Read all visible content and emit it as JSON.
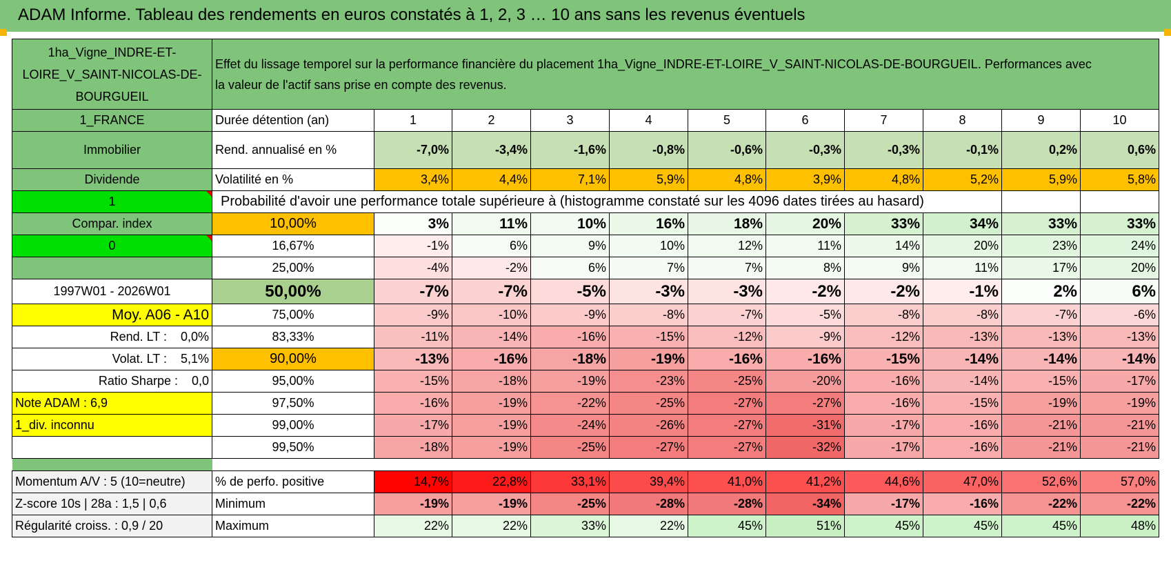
{
  "header": {
    "title": "ADAM Informe. Tableau des rendements en euros constatés à 1, 2, 3 … 10 ans sans les revenus éventuels"
  },
  "sidebar": {
    "asset_name": "1ha_Vigne_INDRE-ET-LOIRE_V_SAINT-NICOLAS-DE-BOURGUEIL",
    "country": "1_FRANCE",
    "category": "Immobilier",
    "type": "Dividende",
    "value1": "1",
    "compar_label": "Compar. index",
    "value0": "0",
    "period": "1997W01 - 2026W01",
    "moy": "Moy. A06 - A10",
    "rend_lt": "Rend. LT :    0,0%",
    "volat_lt": "Volat. LT :    5,1%",
    "sharpe": "Ratio Sharpe :    0,0",
    "note": "Note ADAM : 6,9",
    "div": "1_div. inconnu",
    "momentum": "Momentum A/V : 5 (10=neutre)",
    "zscore": "Z-score 10s | 28a : 1,5 | 0,6",
    "regularite": "Régularité croiss. : 0,9 / 20"
  },
  "table": {
    "description": "Effet du lissage temporel sur la performance financière du placement 1ha_Vigne_INDRE-ET-LOIRE_V_SAINT-NICOLAS-DE-BOURGUEIL. Performances avec la valeur de l'actif sans prise en compte des revenus.",
    "duration_label": "Durée détention (an)",
    "years": [
      "1",
      "2",
      "3",
      "4",
      "5",
      "6",
      "7",
      "8",
      "9",
      "10"
    ],
    "rend_label": "Rend. annualisé en %",
    "rend": [
      "-7,0%",
      "-3,4%",
      "-1,6%",
      "-0,8%",
      "-0,6%",
      "-0,3%",
      "-0,3%",
      "-0,1%",
      "0,2%",
      "0,6%"
    ],
    "vol_label": "Volatilité en %",
    "vol": [
      "3,4%",
      "4,4%",
      "7,1%",
      "5,9%",
      "4,8%",
      "3,9%",
      "4,8%",
      "5,2%",
      "5,9%",
      "5,8%"
    ],
    "prob_header": "Probabilité d'avoir une performance totale supérieure à (histogramme constaté sur les 4096 dates tirées au hasard)",
    "percentiles": [
      {
        "p": "10,00%",
        "vals": [
          "3%",
          "11%",
          "10%",
          "16%",
          "18%",
          "20%",
          "33%",
          "34%",
          "33%",
          "33%"
        ]
      },
      {
        "p": "16,67%",
        "vals": [
          "-1%",
          "6%",
          "9%",
          "10%",
          "12%",
          "11%",
          "14%",
          "20%",
          "23%",
          "24%"
        ]
      },
      {
        "p": "25,00%",
        "vals": [
          "-4%",
          "-2%",
          "6%",
          "7%",
          "7%",
          "8%",
          "9%",
          "11%",
          "17%",
          "20%"
        ]
      },
      {
        "p": "50,00%",
        "vals": [
          "-7%",
          "-7%",
          "-5%",
          "-3%",
          "-3%",
          "-2%",
          "-2%",
          "-1%",
          "2%",
          "6%"
        ]
      },
      {
        "p": "75,00%",
        "vals": [
          "-9%",
          "-10%",
          "-9%",
          "-8%",
          "-7%",
          "-5%",
          "-8%",
          "-8%",
          "-7%",
          "-6%"
        ]
      },
      {
        "p": "83,33%",
        "vals": [
          "-11%",
          "-14%",
          "-16%",
          "-15%",
          "-12%",
          "-9%",
          "-12%",
          "-13%",
          "-13%",
          "-13%"
        ]
      },
      {
        "p": "90,00%",
        "vals": [
          "-13%",
          "-16%",
          "-18%",
          "-19%",
          "-16%",
          "-16%",
          "-15%",
          "-14%",
          "-14%",
          "-14%"
        ]
      },
      {
        "p": "95,00%",
        "vals": [
          "-15%",
          "-18%",
          "-19%",
          "-23%",
          "-25%",
          "-20%",
          "-16%",
          "-14%",
          "-15%",
          "-17%"
        ]
      },
      {
        "p": "97,50%",
        "vals": [
          "-16%",
          "-19%",
          "-22%",
          "-25%",
          "-27%",
          "-27%",
          "-16%",
          "-15%",
          "-19%",
          "-19%"
        ]
      },
      {
        "p": "99,00%",
        "vals": [
          "-17%",
          "-19%",
          "-24%",
          "-26%",
          "-27%",
          "-31%",
          "-17%",
          "-16%",
          "-21%",
          "-21%"
        ]
      },
      {
        "p": "99,50%",
        "vals": [
          "-18%",
          "-19%",
          "-25%",
          "-27%",
          "-27%",
          "-32%",
          "-17%",
          "-16%",
          "-21%",
          "-21%"
        ]
      }
    ],
    "pos_label": "% de perfo. positive",
    "pos": [
      "14,7%",
      "22,8%",
      "33,1%",
      "39,4%",
      "41,0%",
      "41,2%",
      "44,6%",
      "47,0%",
      "52,6%",
      "57,0%"
    ],
    "min_label": "Minimum",
    "min": [
      "-19%",
      "-19%",
      "-25%",
      "-28%",
      "-28%",
      "-34%",
      "-17%",
      "-16%",
      "-22%",
      "-22%"
    ],
    "max_label": "Maximum",
    "max": [
      "22%",
      "22%",
      "33%",
      "22%",
      "45%",
      "51%",
      "45%",
      "45%",
      "45%",
      "48%"
    ]
  },
  "colors": {
    "header_green": "#7fc47a",
    "light_green": "#a9d08e",
    "bright_green": "#00e000",
    "yellow": "#ffff00",
    "orange": "#ffc000",
    "red_text": "#e00000"
  }
}
